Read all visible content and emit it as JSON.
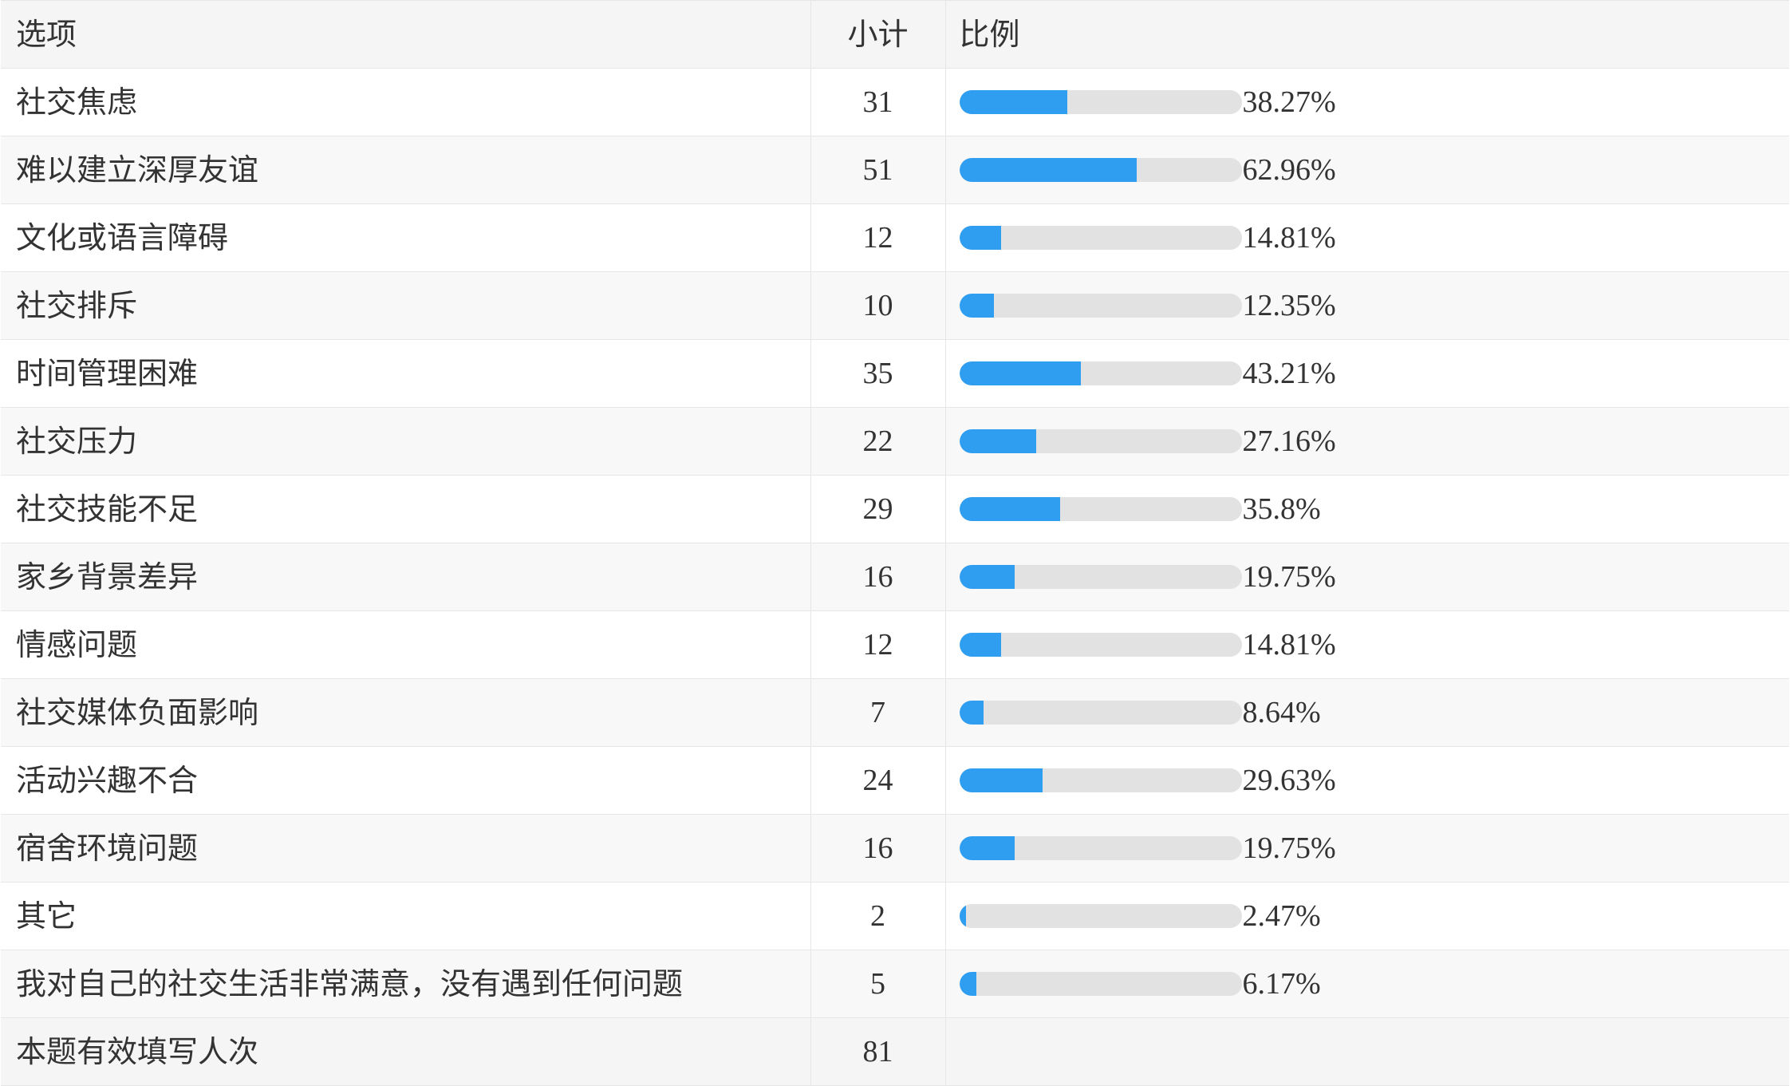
{
  "header": {
    "option": "选项",
    "count": "小计",
    "ratio": "比例"
  },
  "rows": [
    {
      "option": "社交焦虑",
      "count": "31",
      "percent_label": "38.27%",
      "percent": 38.27
    },
    {
      "option": "难以建立深厚友谊",
      "count": "51",
      "percent_label": "62.96%",
      "percent": 62.96
    },
    {
      "option": "文化或语言障碍",
      "count": "12",
      "percent_label": "14.81%",
      "percent": 14.81
    },
    {
      "option": "社交排斥",
      "count": "10",
      "percent_label": "12.35%",
      "percent": 12.35
    },
    {
      "option": "时间管理困难",
      "count": "35",
      "percent_label": "43.21%",
      "percent": 43.21
    },
    {
      "option": "社交压力",
      "count": "22",
      "percent_label": "27.16%",
      "percent": 27.16
    },
    {
      "option": "社交技能不足",
      "count": "29",
      "percent_label": "35.8%",
      "percent": 35.8
    },
    {
      "option": "家乡背景差异",
      "count": "16",
      "percent_label": "19.75%",
      "percent": 19.75
    },
    {
      "option": "情感问题",
      "count": "12",
      "percent_label": "14.81%",
      "percent": 14.81
    },
    {
      "option": "社交媒体负面影响",
      "count": "7",
      "percent_label": "8.64%",
      "percent": 8.64
    },
    {
      "option": "活动兴趣不合",
      "count": "24",
      "percent_label": "29.63%",
      "percent": 29.63
    },
    {
      "option": "宿舍环境问题",
      "count": "16",
      "percent_label": "19.75%",
      "percent": 19.75
    },
    {
      "option": "其它",
      "count": "2",
      "percent_label": "2.47%",
      "percent": 2.47
    },
    {
      "option": "我对自己的社交生活非常满意，没有遇到任何问题",
      "count": "5",
      "percent_label": "6.17%",
      "percent": 6.17
    }
  ],
  "footer": {
    "label": "本题有效填写人次",
    "count": "81"
  },
  "colors": {
    "bar_fill": "#2f9ef0",
    "bar_track": "#e2e2e2"
  }
}
